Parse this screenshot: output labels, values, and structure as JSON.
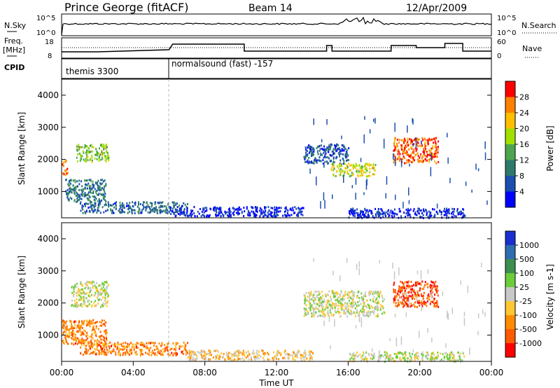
{
  "header": {
    "station": "Prince George (fitACF)",
    "beam": "Beam 14",
    "date": "12/Apr/2009"
  },
  "summary_panels": {
    "nsky_label": "N.Sky",
    "nsky_ticks": [
      "10^5",
      "10^0"
    ],
    "nsearch_label": "N.Search",
    "nsearch_ticks": [
      "10^5",
      "10^0"
    ],
    "freq_label": "Freq.",
    "freq_unit": "[MHz]",
    "freq_ticks": [
      "18",
      "8"
    ],
    "nave_label": "Nave",
    "nave_ticks": [
      "60",
      "0"
    ],
    "cpid_label": "CPID",
    "cpid_segments": [
      {
        "label": "themis 3300",
        "start_hour": 0.0
      },
      {
        "label": "normalsound (fast) -157",
        "start_hour": 6.0
      }
    ]
  },
  "chart_data": [
    {
      "type": "heatmap",
      "quantity": "power",
      "ylabel": "Slant Range [km]",
      "ylim": [
        180,
        4500
      ],
      "yticks": [
        "1000",
        "2000",
        "3000",
        "4000"
      ],
      "colorbar_label": "Power [dB]",
      "colorbar_ticks": [
        "28",
        "24",
        "20",
        "16",
        "12",
        "8",
        "4"
      ],
      "colorbar_colors": [
        "#ff0000",
        "#ff8000",
        "#ffbf00",
        "#a0e000",
        "#4da64d",
        "#2e7a6a",
        "#1a4fb0",
        "#0000ff"
      ],
      "regions": [
        {
          "x": [
            0.0,
            0.3
          ],
          "y": [
            1500,
            2000
          ],
          "level": 0.8
        },
        {
          "x": [
            0.8,
            2.6
          ],
          "y": [
            1950,
            2500
          ],
          "level": 0.5
        },
        {
          "x": [
            0.2,
            2.5
          ],
          "y": [
            700,
            1400
          ],
          "level": 0.3
        },
        {
          "x": [
            1.0,
            7.0
          ],
          "y": [
            350,
            700
          ],
          "level": 0.25
        },
        {
          "x": [
            6.0,
            13.5
          ],
          "y": [
            250,
            550
          ],
          "level": 0.1
        },
        {
          "x": [
            13.5,
            16.0
          ],
          "y": [
            1900,
            2500
          ],
          "level": 0.2
        },
        {
          "x": [
            15.0,
            17.5
          ],
          "y": [
            1500,
            1900
          ],
          "level": 0.6
        },
        {
          "x": [
            18.5,
            21.0
          ],
          "y": [
            1900,
            2700
          ],
          "level": 0.85
        },
        {
          "x": [
            16.0,
            22.5
          ],
          "y": [
            200,
            500
          ],
          "level": 0.1
        }
      ]
    },
    {
      "type": "heatmap",
      "quantity": "velocity",
      "ylabel": "Slant Range [km]",
      "ylim": [
        180,
        4500
      ],
      "yticks": [
        "1000",
        "2000",
        "3000",
        "4000"
      ],
      "colorbar_label": "Velocity [m s-1]",
      "colorbar_ticks": [
        "1000",
        "500",
        "100",
        "25",
        "-25",
        "-100",
        "-500",
        "-1000"
      ],
      "colorbar_colors": [
        "#1a2fd0",
        "#2e6db0",
        "#3d8f4f",
        "#6ccd3a",
        "#c8c8c8",
        "#ffc832",
        "#ff8c00",
        "#ff5a00",
        "#ff0000"
      ],
      "regions": [
        {
          "x": [
            0.5,
            2.6
          ],
          "y": [
            1900,
            2700
          ],
          "level": 0.5
        },
        {
          "x": [
            0.0,
            2.5
          ],
          "y": [
            700,
            1500
          ],
          "level": 0.75
        },
        {
          "x": [
            1.0,
            7.0
          ],
          "y": [
            400,
            800
          ],
          "level": 0.75
        },
        {
          "x": [
            7.0,
            14.0
          ],
          "y": [
            250,
            550
          ],
          "level": 0.6
        },
        {
          "x": [
            13.5,
            18.0
          ],
          "y": [
            1600,
            2400
          ],
          "level": 0.5
        },
        {
          "x": [
            18.5,
            21.0
          ],
          "y": [
            1900,
            2700
          ],
          "level": 0.85
        },
        {
          "x": [
            16.0,
            22.5
          ],
          "y": [
            200,
            500
          ],
          "level": 0.5
        }
      ]
    }
  ],
  "time_axis": {
    "xlabel": "Time UT",
    "ticks": [
      "00:00",
      "04:00",
      "08:00",
      "12:00",
      "16:00",
      "20:00",
      "00:00"
    ],
    "xlim_hours": [
      0,
      24
    ]
  }
}
